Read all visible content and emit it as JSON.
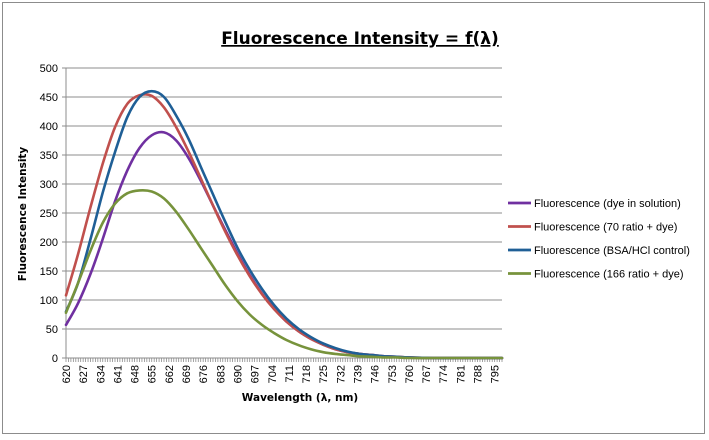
{
  "chart_data": {
    "type": "line",
    "title": "Fluorescence Intensity = f(λ)",
    "xlabel": "Wavelength (λ, nm)",
    "ylabel": "Fluorescence Intensity",
    "xlim": [
      620,
      798
    ],
    "ylim": [
      0,
      500
    ],
    "yticks": [
      0,
      50,
      100,
      150,
      200,
      250,
      300,
      350,
      400,
      450,
      500
    ],
    "xtick_labels": [
      "620",
      "627",
      "634",
      "641",
      "648",
      "655",
      "662",
      "669",
      "676",
      "683",
      "690",
      "697",
      "704",
      "711",
      "718",
      "725",
      "732",
      "739",
      "746",
      "753",
      "760",
      "767",
      "774",
      "781",
      "788",
      "795"
    ],
    "grid": "horizontal",
    "legend_position": "right",
    "x": [
      620,
      625,
      630,
      635,
      640,
      645,
      650,
      655,
      660,
      665,
      670,
      675,
      680,
      685,
      690,
      695,
      700,
      705,
      710,
      715,
      720,
      725,
      730,
      735,
      740,
      745,
      750,
      755,
      760,
      770,
      780,
      798
    ],
    "series": [
      {
        "name": "Fluorescence (dye in solution)",
        "color": "#7030a0",
        "values": [
          57,
          95,
          145,
          205,
          270,
          323,
          362,
          384,
          389,
          375,
          345,
          306,
          263,
          221,
          180,
          143,
          111,
          85,
          63,
          46,
          33,
          23,
          15,
          10,
          7,
          5,
          3,
          2,
          1,
          0,
          0,
          0
        ]
      },
      {
        "name": "Fluorescence (70 ratio + dye)",
        "color": "#c0504d",
        "values": [
          108,
          180,
          260,
          335,
          398,
          438,
          453,
          452,
          432,
          398,
          356,
          310,
          263,
          218,
          177,
          141,
          110,
          84,
          63,
          46,
          33,
          23,
          15,
          10,
          7,
          5,
          3,
          2,
          1,
          0,
          0,
          0
        ]
      },
      {
        "name": "Fluorescence (BSA/HCl control)",
        "color": "#1f5f96",
        "values": [
          80,
          130,
          205,
          285,
          355,
          415,
          450,
          460,
          450,
          418,
          378,
          330,
          282,
          235,
          190,
          152,
          119,
          91,
          68,
          50,
          36,
          25,
          17,
          11,
          7,
          5,
          3,
          2,
          1,
          0,
          0,
          0
        ]
      },
      {
        "name": "Fluorescence (166 ratio + dye)",
        "color": "#77933c",
        "values": [
          78,
          130,
          185,
          233,
          266,
          284,
          289,
          287,
          275,
          252,
          222,
          190,
          158,
          126,
          98,
          75,
          57,
          43,
          31,
          22,
          15,
          10,
          7,
          5,
          3,
          2,
          1,
          1,
          0,
          0,
          0,
          0
        ]
      }
    ]
  }
}
